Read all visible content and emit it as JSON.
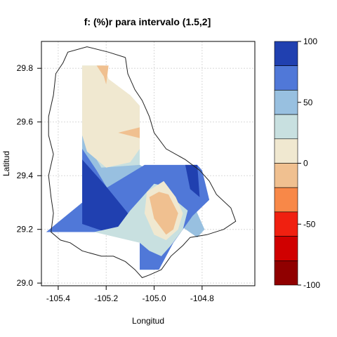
{
  "chart_data": {
    "type": "heatmap",
    "subtype": "filled-contour-map",
    "title": "f:   (%)r para intervalo (1.5,2]",
    "xlabel": "Longitud",
    "ylabel": "Latitud",
    "xlim": [
      -105.47,
      -104.58
    ],
    "ylim": [
      28.99,
      29.9
    ],
    "xticks": [
      -105.4,
      -105.2,
      -105.0,
      -104.8
    ],
    "xtick_labels": [
      "-105.4",
      "-105.2",
      "-105.0",
      "-104.8"
    ],
    "yticks": [
      29.0,
      29.2,
      29.4,
      29.6,
      29.8
    ],
    "ytick_labels": [
      "29.0",
      "29.2",
      "29.4",
      "29.6",
      "29.8"
    ],
    "grid": true,
    "colorbar": {
      "ticks": [
        100,
        50,
        0,
        -50,
        -100
      ],
      "tick_labels": [
        "100",
        "50",
        "0",
        "-50",
        "-100"
      ],
      "levels": [
        {
          "from": 80,
          "to": 100,
          "color": "#2040b0"
        },
        {
          "from": 60,
          "to": 80,
          "color": "#5078d8"
        },
        {
          "from": 40,
          "to": 60,
          "color": "#98c0e0"
        },
        {
          "from": 20,
          "to": 40,
          "color": "#c8e0e0"
        },
        {
          "from": 0,
          "to": 20,
          "color": "#f0e8d0"
        },
        {
          "from": -20,
          "to": 0,
          "color": "#f0c090"
        },
        {
          "from": -40,
          "to": -20,
          "color": "#f88848"
        },
        {
          "from": -60,
          "to": -40,
          "color": "#f02010"
        },
        {
          "from": -80,
          "to": -60,
          "color": "#d00000"
        },
        {
          "from": -100,
          "to": -80,
          "color": "#900000"
        }
      ]
    },
    "regions": [
      {
        "level": 20,
        "points": [
          [
            -105.3,
            29.81
          ],
          [
            -105.21,
            29.81
          ],
          [
            -105.2,
            29.75
          ],
          [
            -105.1,
            29.7
          ],
          [
            -105.06,
            29.66
          ],
          [
            -105.06,
            29.44
          ],
          [
            -105.0,
            29.41
          ],
          [
            -104.95,
            29.4
          ],
          [
            -104.9,
            29.36
          ],
          [
            -104.85,
            29.32
          ],
          [
            -104.79,
            29.2
          ],
          [
            -104.82,
            29.17
          ],
          [
            -104.9,
            29.22
          ],
          [
            -104.97,
            29.13
          ],
          [
            -105.0,
            29.05
          ],
          [
            -105.06,
            29.05
          ],
          [
            -105.06,
            29.19
          ],
          [
            -105.3,
            29.19
          ]
        ]
      },
      {
        "level": 40,
        "points": [
          [
            -105.3,
            29.55
          ],
          [
            -105.22,
            29.43
          ],
          [
            -105.06,
            29.44
          ],
          [
            -105.0,
            29.41
          ],
          [
            -104.95,
            29.4
          ],
          [
            -104.9,
            29.36
          ],
          [
            -104.85,
            29.32
          ],
          [
            -104.79,
            29.2
          ],
          [
            -104.82,
            29.17
          ],
          [
            -104.9,
            29.22
          ],
          [
            -104.97,
            29.13
          ],
          [
            -105.0,
            29.05
          ],
          [
            -105.06,
            29.05
          ],
          [
            -105.06,
            29.19
          ],
          [
            -105.3,
            29.19
          ]
        ]
      },
      {
        "level": 60,
        "points": [
          [
            -105.3,
            29.5
          ],
          [
            -105.24,
            29.42
          ],
          [
            -105.16,
            29.3
          ],
          [
            -105.06,
            29.28
          ],
          [
            -105.06,
            29.19
          ],
          [
            -105.3,
            29.19
          ]
        ]
      },
      {
        "level": 60,
        "points": [
          [
            -105.3,
            29.19
          ],
          [
            -105.06,
            29.19
          ],
          [
            -105.06,
            29.05
          ],
          [
            -104.98,
            29.05
          ],
          [
            -104.92,
            29.15
          ],
          [
            -104.84,
            29.25
          ],
          [
            -104.77,
            29.31
          ],
          [
            -104.8,
            29.42
          ],
          [
            -104.82,
            29.44
          ],
          [
            -105.04,
            29.44
          ],
          [
            -105.3,
            29.3
          ],
          [
            -105.45,
            29.19
          ]
        ]
      },
      {
        "level": 80,
        "points": [
          [
            -105.3,
            29.46
          ],
          [
            -105.2,
            29.36
          ],
          [
            -105.1,
            29.25
          ],
          [
            -105.06,
            29.2
          ],
          [
            -105.2,
            29.19
          ],
          [
            -105.3,
            29.22
          ]
        ]
      },
      {
        "level": 80,
        "points": [
          [
            -104.87,
            29.44
          ],
          [
            -104.82,
            29.44
          ],
          [
            -104.81,
            29.32
          ],
          [
            -104.85,
            29.35
          ]
        ]
      },
      {
        "level": 20,
        "points": [
          [
            -105.25,
            29.19
          ],
          [
            -105.15,
            29.21
          ],
          [
            -105.1,
            29.27
          ],
          [
            -105.0,
            29.37
          ],
          [
            -104.95,
            29.36
          ],
          [
            -104.9,
            29.3
          ],
          [
            -104.86,
            29.27
          ],
          [
            -104.88,
            29.2
          ],
          [
            -104.93,
            29.14
          ],
          [
            -104.97,
            29.1
          ],
          [
            -105.02,
            29.12
          ],
          [
            -105.06,
            29.15
          ]
        ]
      },
      {
        "level": 0,
        "points": [
          [
            -105.3,
            29.81
          ],
          [
            -105.21,
            29.81
          ],
          [
            -105.19,
            29.76
          ],
          [
            -105.1,
            29.7
          ],
          [
            -105.06,
            29.66
          ],
          [
            -105.06,
            29.5
          ],
          [
            -105.1,
            29.45
          ],
          [
            -105.2,
            29.43
          ],
          [
            -105.28,
            29.49
          ],
          [
            -105.3,
            29.55
          ]
        ]
      },
      {
        "level": 0,
        "points": [
          [
            -105.03,
            29.34
          ],
          [
            -104.96,
            29.38
          ],
          [
            -104.91,
            29.32
          ],
          [
            -104.88,
            29.26
          ],
          [
            -104.9,
            29.2
          ],
          [
            -104.95,
            29.16
          ],
          [
            -105.0,
            29.18
          ],
          [
            -105.04,
            29.26
          ]
        ]
      },
      {
        "level": -20,
        "points": [
          [
            -105.24,
            29.81
          ],
          [
            -105.19,
            29.81
          ],
          [
            -105.2,
            29.74
          ],
          [
            -105.21,
            29.77
          ]
        ]
      },
      {
        "level": -20,
        "points": [
          [
            -105.06,
            29.58
          ],
          [
            -105.06,
            29.54
          ],
          [
            -105.15,
            29.56
          ]
        ]
      },
      {
        "level": -20,
        "points": [
          [
            -105.02,
            29.32
          ],
          [
            -104.98,
            29.34
          ],
          [
            -104.94,
            29.33
          ],
          [
            -104.9,
            29.26
          ],
          [
            -104.92,
            29.2
          ],
          [
            -104.95,
            29.18
          ],
          [
            -105.0,
            29.24
          ]
        ]
      }
    ],
    "boundary": [
      [
        -105.12,
        29.84
      ],
      [
        -105.19,
        29.86
      ],
      [
        -105.28,
        29.88
      ],
      [
        -105.36,
        29.86
      ],
      [
        -105.38,
        29.82
      ],
      [
        -105.41,
        29.78
      ],
      [
        -105.42,
        29.7
      ],
      [
        -105.44,
        29.62
      ],
      [
        -105.44,
        29.55
      ],
      [
        -105.42,
        29.48
      ],
      [
        -105.44,
        29.4
      ],
      [
        -105.43,
        29.32
      ],
      [
        -105.42,
        29.26
      ],
      [
        -105.43,
        29.19
      ],
      [
        -105.39,
        29.16
      ],
      [
        -105.35,
        29.15
      ],
      [
        -105.3,
        29.12
      ],
      [
        -105.22,
        29.1
      ],
      [
        -105.17,
        29.1
      ],
      [
        -105.12,
        29.08
      ],
      [
        -105.08,
        29.05
      ],
      [
        -105.05,
        29.02
      ],
      [
        -105.02,
        29.03
      ],
      [
        -104.97,
        29.05
      ],
      [
        -104.93,
        29.1
      ],
      [
        -104.88,
        29.14
      ],
      [
        -104.85,
        29.17
      ],
      [
        -104.78,
        29.18
      ],
      [
        -104.71,
        29.2
      ],
      [
        -104.66,
        29.23
      ],
      [
        -104.68,
        29.28
      ],
      [
        -104.74,
        29.33
      ],
      [
        -104.77,
        29.38
      ],
      [
        -104.81,
        29.42
      ],
      [
        -104.87,
        29.46
      ],
      [
        -104.95,
        29.5
      ],
      [
        -105.0,
        29.56
      ],
      [
        -105.02,
        29.62
      ],
      [
        -105.05,
        29.68
      ],
      [
        -105.08,
        29.72
      ],
      [
        -105.11,
        29.78
      ],
      [
        -105.12,
        29.84
      ]
    ]
  }
}
